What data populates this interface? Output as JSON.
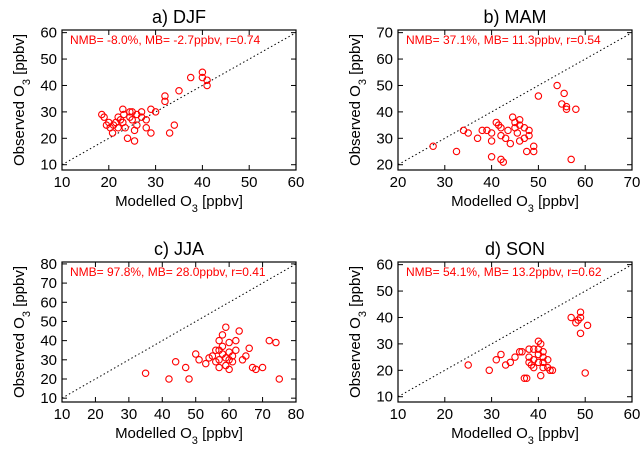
{
  "figure": {
    "colors": {
      "points": "#ff0000",
      "stats": "#ff0000",
      "axes": "#000000"
    }
  },
  "chart_data": [
    {
      "type": "scatter",
      "title": "a) DJF",
      "stats": "NMB= -8.0%, MB= -2.7ppbv, r=0.74",
      "xlabel": "Modelled O₃ [ppbv]",
      "ylabel": "Observed O₃ [ppbv]",
      "xlim": [
        10,
        60
      ],
      "ylim": [
        8,
        61
      ],
      "xticks": [
        10,
        20,
        30,
        40,
        50,
        60
      ],
      "yticks": [
        10,
        20,
        30,
        40,
        50,
        60
      ],
      "one_to_one_line": true,
      "points": [
        [
          18.5,
          29
        ],
        [
          19,
          28
        ],
        [
          19.5,
          25
        ],
        [
          20,
          26
        ],
        [
          20.3,
          24
        ],
        [
          20.8,
          22
        ],
        [
          21,
          25
        ],
        [
          21.5,
          26
        ],
        [
          22,
          24
        ],
        [
          22,
          28
        ],
        [
          22.5,
          27
        ],
        [
          23,
          26
        ],
        [
          23.2,
          29
        ],
        [
          23.5,
          24
        ],
        [
          23,
          31
        ],
        [
          24,
          20
        ],
        [
          24.5,
          28
        ],
        [
          24.5,
          30
        ],
        [
          25,
          30
        ],
        [
          25,
          27
        ],
        [
          25.5,
          23
        ],
        [
          25.5,
          19
        ],
        [
          26,
          25
        ],
        [
          26,
          29
        ],
        [
          27,
          28
        ],
        [
          27,
          30
        ],
        [
          28,
          24
        ],
        [
          28,
          27
        ],
        [
          29,
          22
        ],
        [
          29,
          31
        ],
        [
          30,
          30
        ],
        [
          32,
          34
        ],
        [
          32,
          36
        ],
        [
          33,
          22
        ],
        [
          34,
          25
        ],
        [
          35,
          38
        ],
        [
          37.5,
          43
        ],
        [
          40,
          45
        ],
        [
          40,
          43
        ],
        [
          41,
          40
        ],
        [
          41,
          42
        ]
      ]
    },
    {
      "type": "scatter",
      "title": "b) MAM",
      "stats": "NMB= 37.1%, MB= 11.3ppbv, r=0.54",
      "xlabel": "Modelled O₃ [ppbv]",
      "ylabel": "Observed O₃ [ppbv]",
      "xlim": [
        20,
        70
      ],
      "ylim": [
        18,
        71
      ],
      "xticks": [
        20,
        30,
        40,
        50,
        60,
        70
      ],
      "yticks": [
        20,
        30,
        40,
        50,
        60,
        70
      ],
      "one_to_one_line": true,
      "points": [
        [
          27.5,
          27
        ],
        [
          32.5,
          25
        ],
        [
          34,
          33
        ],
        [
          35,
          32
        ],
        [
          37,
          30
        ],
        [
          38,
          33
        ],
        [
          39,
          33
        ],
        [
          40,
          32
        ],
        [
          40,
          29
        ],
        [
          40,
          23
        ],
        [
          41,
          36
        ],
        [
          41.5,
          35
        ],
        [
          42,
          34
        ],
        [
          42,
          31
        ],
        [
          42,
          22
        ],
        [
          42.5,
          21
        ],
        [
          43,
          30
        ],
        [
          43.5,
          33
        ],
        [
          44,
          28
        ],
        [
          44.5,
          38
        ],
        [
          45,
          36
        ],
        [
          45,
          34
        ],
        [
          45.5,
          32
        ],
        [
          46,
          37
        ],
        [
          46,
          35
        ],
        [
          46,
          29
        ],
        [
          47,
          34
        ],
        [
          47,
          30
        ],
        [
          47.5,
          25
        ],
        [
          48,
          33
        ],
        [
          48,
          31
        ],
        [
          49,
          27
        ],
        [
          49,
          25
        ],
        [
          50,
          46
        ],
        [
          54,
          50
        ],
        [
          55,
          43
        ],
        [
          55.5,
          47
        ],
        [
          56,
          42
        ],
        [
          56,
          41
        ],
        [
          57,
          22
        ],
        [
          58,
          41
        ]
      ]
    },
    {
      "type": "scatter",
      "title": "c) JJA",
      "stats": "NMB= 97.8%, MB= 28.0ppbv, r=0.41",
      "xlabel": "Modelled O₃ [ppbv]",
      "ylabel": "Observed O₃ [ppbv]",
      "xlim": [
        10,
        80
      ],
      "ylim": [
        8,
        81
      ],
      "xticks": [
        10,
        20,
        30,
        40,
        50,
        60,
        70,
        80
      ],
      "yticks": [
        10,
        20,
        30,
        40,
        50,
        60,
        70,
        80
      ],
      "one_to_one_line": true,
      "points": [
        [
          35,
          23
        ],
        [
          42,
          20
        ],
        [
          44,
          29
        ],
        [
          47,
          26
        ],
        [
          48,
          20
        ],
        [
          50,
          33
        ],
        [
          51,
          30
        ],
        [
          53,
          28
        ],
        [
          54,
          31
        ],
        [
          55,
          32
        ],
        [
          56,
          29
        ],
        [
          56,
          35
        ],
        [
          57,
          26
        ],
        [
          57,
          30
        ],
        [
          57,
          35
        ],
        [
          57,
          40
        ],
        [
          58,
          33
        ],
        [
          58,
          37
        ],
        [
          58,
          43
        ],
        [
          59,
          27
        ],
        [
          59,
          31
        ],
        [
          59,
          47
        ],
        [
          60,
          25
        ],
        [
          60,
          30
        ],
        [
          60,
          34
        ],
        [
          60,
          39
        ],
        [
          61,
          29
        ],
        [
          61,
          32
        ],
        [
          62,
          35
        ],
        [
          62,
          40
        ],
        [
          63,
          45
        ],
        [
          64,
          30
        ],
        [
          65,
          32
        ],
        [
          66,
          36
        ],
        [
          67,
          26
        ],
        [
          68,
          25
        ],
        [
          70,
          26
        ],
        [
          72,
          40
        ],
        [
          74,
          39
        ],
        [
          75,
          20
        ]
      ]
    },
    {
      "type": "scatter",
      "title": "d) SON",
      "stats": "NMB= 54.1%, MB= 13.2ppbv, r=0.62",
      "xlabel": "Modelled O₃ [ppbv]",
      "ylabel": "Observed O₃ [ppbv]",
      "xlim": [
        10,
        60
      ],
      "ylim": [
        8,
        61
      ],
      "xticks": [
        10,
        20,
        30,
        40,
        50,
        60
      ],
      "yticks": [
        10,
        20,
        30,
        40,
        50,
        60
      ],
      "one_to_one_line": true,
      "points": [
        [
          25,
          22
        ],
        [
          29.5,
          20
        ],
        [
          31,
          24
        ],
        [
          32,
          26
        ],
        [
          33,
          22
        ],
        [
          34,
          23
        ],
        [
          35,
          25
        ],
        [
          36,
          27
        ],
        [
          36.5,
          27
        ],
        [
          37,
          17
        ],
        [
          37.5,
          17
        ],
        [
          38,
          23
        ],
        [
          38,
          25
        ],
        [
          38,
          28
        ],
        [
          38.5,
          22
        ],
        [
          39,
          24
        ],
        [
          39,
          21
        ],
        [
          39,
          28
        ],
        [
          40,
          31
        ],
        [
          40,
          28
        ],
        [
          40,
          26
        ],
        [
          40,
          23
        ],
        [
          40.5,
          30
        ],
        [
          40.5,
          18
        ],
        [
          41,
          27
        ],
        [
          41,
          25
        ],
        [
          41,
          23
        ],
        [
          41,
          21
        ],
        [
          42,
          24
        ],
        [
          42,
          21
        ],
        [
          42.5,
          20
        ],
        [
          43,
          20
        ],
        [
          47,
          40
        ],
        [
          48,
          38
        ],
        [
          48.5,
          39
        ],
        [
          49,
          40
        ],
        [
          49,
          42
        ],
        [
          49,
          34
        ],
        [
          50,
          19
        ],
        [
          50.5,
          37
        ]
      ]
    }
  ]
}
